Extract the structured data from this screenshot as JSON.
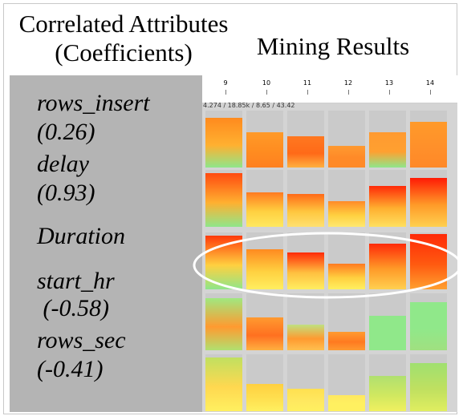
{
  "headers": {
    "left_line1": "Correlated Attributes",
    "left_line2": "(Coefficients)",
    "right": "Mining Results"
  },
  "attributes": [
    {
      "name": "rows_insert",
      "coef": "(0.26)"
    },
    {
      "name": "delay",
      "coef": "(0.93)"
    },
    {
      "name": "Duration",
      "coef": ""
    },
    {
      "name": "start_hr",
      "coef": " (-0.58)"
    },
    {
      "name": "rows_sec",
      "coef": "(-0.41)"
    }
  ],
  "ruler": {
    "ticks": [
      "9",
      "10",
      "11",
      "12",
      "13",
      "14"
    ],
    "stats": "4.274 / 18.85k / 8.65 / 43.42"
  },
  "grid": {
    "rows": [
      {
        "name": "rows_insert",
        "levels": [
          0.88,
          0.62,
          0.55,
          0.38,
          0.62,
          0.8
        ],
        "colors": [
          [
            "#ff8a1e",
            "#ffb030",
            "#8fe68a"
          ],
          [
            "#ff9a28",
            "#ff8c20",
            "#ff8020"
          ],
          [
            "#ff7820",
            "#ff6a18",
            "#ffb040"
          ],
          [
            "#ff9a30",
            "#ff8a28",
            "#ff8a28"
          ],
          [
            "#ff9a30",
            "#ffa030",
            "#8fe68a"
          ],
          [
            "#ff9a2a",
            "#ff902a",
            "#ff8828"
          ]
        ]
      },
      {
        "name": "delay",
        "levels": [
          0.95,
          0.6,
          0.58,
          0.45,
          0.72,
          0.86
        ],
        "colors": [
          [
            "#ff4a10",
            "#ffb030",
            "#8fe68a"
          ],
          [
            "#ff7a20",
            "#ffd040",
            "#ffe860"
          ],
          [
            "#ff6a18",
            "#ffc840",
            "#ffe070"
          ],
          [
            "#ff8a28",
            "#ffd040",
            "#ffe870"
          ],
          [
            "#ff2a08",
            "#ffb030",
            "#ffe060"
          ],
          [
            "#ff1a05",
            "#ff9a28",
            "#ffd050"
          ]
        ]
      },
      {
        "name": "Duration",
        "levels": [
          0.95,
          0.7,
          0.65,
          0.45,
          0.8,
          0.97
        ],
        "colors": [
          [
            "#ff3a0a",
            "#ffd040",
            "#8fe68a"
          ],
          [
            "#ff8a20",
            "#ffd040",
            "#ffee60"
          ],
          [
            "#ff2a08",
            "#ffc040",
            "#ffee60"
          ],
          [
            "#ff7a20",
            "#ffd040",
            "#fff060"
          ],
          [
            "#ff2a08",
            "#ff9a28",
            "#ffd050"
          ],
          [
            "#ff2a08",
            "#ff5a10",
            "#ffa030"
          ]
        ]
      },
      {
        "name": "start_hr",
        "levels": [
          0.92,
          0.58,
          0.45,
          0.32,
          0.6,
          0.85
        ],
        "colors": [
          [
            "#a0e880",
            "#ff9a30",
            "#b0e070"
          ],
          [
            "#ff9a30",
            "#ff7020",
            "#ffb040"
          ],
          [
            "#c0e080",
            "#ff9a30",
            "#ffc050"
          ],
          [
            "#ff9a30",
            "#ff7a20",
            "#ff9a30"
          ],
          [
            "#90e88a",
            "#90e88a",
            "#90e88a"
          ],
          [
            "#90e88a",
            "#90e88a",
            "#a0e080"
          ]
        ]
      },
      {
        "name": "rows_sec",
        "levels": [
          0.95,
          0.48,
          0.4,
          0.28,
          0.62,
          0.85
        ],
        "colors": [
          [
            "#c0e060",
            "#ffd850",
            "#fff060"
          ],
          [
            "#ffd040",
            "#ffe050",
            "#fff060"
          ],
          [
            "#ffe050",
            "#ffe860",
            "#fff060"
          ],
          [
            "#ffe860",
            "#fff060",
            "#fff060"
          ],
          [
            "#b0e070",
            "#d0e860",
            "#f0f060"
          ],
          [
            "#a0e070",
            "#c0e060",
            "#e0ee60"
          ]
        ]
      }
    ]
  },
  "highlight": {
    "row": "Duration",
    "shape": "ellipse",
    "color": "#ffffff"
  }
}
